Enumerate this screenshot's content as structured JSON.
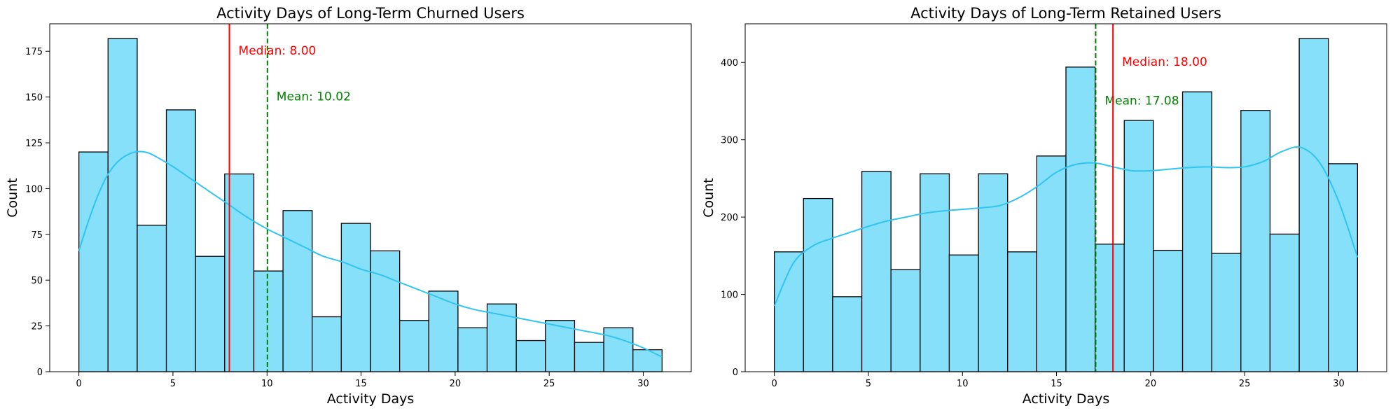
{
  "chart_data": [
    {
      "type": "histogram",
      "title": "Activity Days of Long-Term Churned Users",
      "xlabel": "Activity Days",
      "ylabel": "Count",
      "xlim": [
        -1.55,
        32.55
      ],
      "ylim": [
        0,
        190
      ],
      "xticks": [
        0,
        5,
        10,
        15,
        20,
        25,
        30
      ],
      "yticks": [
        0,
        25,
        50,
        75,
        100,
        125,
        150,
        175
      ],
      "grid": false,
      "bin_start": 0,
      "bin_width": 1.55,
      "counts": [
        120,
        182,
        80,
        143,
        63,
        108,
        55,
        88,
        30,
        81,
        66,
        28,
        44,
        24,
        37,
        17,
        28,
        16,
        24,
        12
      ],
      "bar_color": "#87e0fa",
      "edge_color": "#000000",
      "kde": {
        "color": "#30c4f0",
        "x": [
          0,
          0.5,
          1,
          1.5,
          2,
          2.5,
          3,
          3.5,
          4,
          5,
          6,
          7,
          8,
          9,
          10,
          11,
          12,
          13,
          14,
          15,
          16,
          17,
          18,
          19,
          20,
          21,
          22,
          23,
          24,
          25,
          26,
          27,
          28,
          29,
          30,
          31
        ],
        "y": [
          66,
          82,
          96,
          107,
          114,
          118,
          120,
          120,
          118,
          112,
          105,
          98,
          91,
          84,
          78,
          73,
          68,
          63,
          60,
          56,
          53,
          49,
          45,
          41,
          37,
          34,
          32,
          30,
          28,
          26,
          24,
          22,
          20,
          17,
          13,
          8
        ]
      },
      "reference_lines": [
        {
          "name": "Median",
          "value": 8.0,
          "color": "#ff0000",
          "style": "solid",
          "label": "Median: 8.00",
          "label_y": 175
        },
        {
          "name": "Mean",
          "value": 10.02,
          "color": "#008000",
          "style": "dashed",
          "label": "Mean: 10.02",
          "label_y": 150
        }
      ]
    },
    {
      "type": "histogram",
      "title": "Activity Days of Long-Term Retained Users",
      "xlabel": "Activity Days",
      "ylabel": "Count",
      "xlim": [
        -1.55,
        32.55
      ],
      "ylim": [
        0,
        450
      ],
      "xticks": [
        0,
        5,
        10,
        15,
        20,
        25,
        30
      ],
      "yticks": [
        0,
        100,
        200,
        300,
        400
      ],
      "grid": false,
      "bin_start": 0,
      "bin_width": 1.55,
      "counts": [
        155,
        224,
        97,
        259,
        132,
        256,
        151,
        256,
        155,
        279,
        394,
        165,
        325,
        157,
        362,
        153,
        338,
        178,
        431,
        269
      ],
      "bar_color": "#87e0fa",
      "edge_color": "#000000",
      "kde": {
        "color": "#30c4f0",
        "x": [
          0,
          1,
          2,
          3,
          4,
          5,
          6,
          7,
          8,
          9,
          10,
          11,
          12,
          13,
          14,
          15,
          16,
          17,
          18,
          19,
          20,
          21,
          22,
          23,
          24,
          25,
          26,
          27,
          28,
          29,
          30,
          31
        ],
        "y": [
          85,
          140,
          162,
          172,
          180,
          188,
          195,
          200,
          205,
          208,
          210,
          212,
          215,
          225,
          240,
          258,
          268,
          270,
          265,
          260,
          260,
          262,
          264,
          265,
          264,
          265,
          272,
          285,
          290,
          270,
          220,
          148
        ]
      },
      "reference_lines": [
        {
          "name": "Mean",
          "value": 17.08,
          "color": "#008000",
          "style": "dashed",
          "label": "Mean: 17.08",
          "label_y": 350
        },
        {
          "name": "Median",
          "value": 18.0,
          "color": "#ff0000",
          "style": "solid",
          "label": "Median: 18.00",
          "label_y": 400
        }
      ]
    }
  ]
}
